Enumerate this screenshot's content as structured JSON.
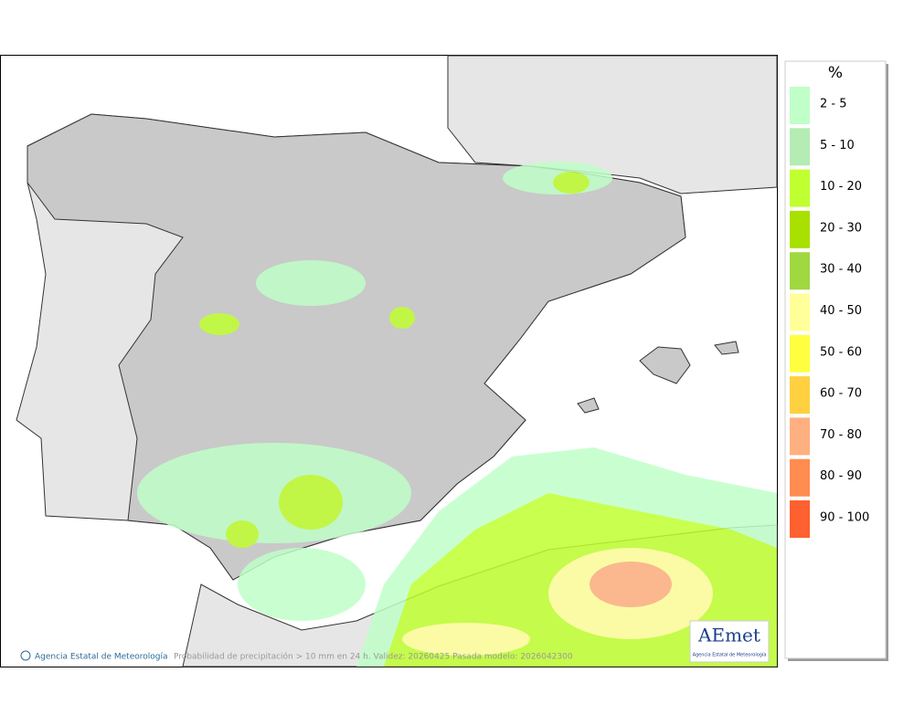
{
  "map": {
    "footer_agency": "Agencia Estatal de Meteorología",
    "footer_caption": "Probabilidad de precipitación > 10 mm en 24 h. Validez: 20260425 Pasada modelo: 2026042300",
    "logo_text": "AEmet",
    "logo_subtitle": "Agencia Estatal de Meteorología"
  },
  "legend": {
    "title": "%",
    "items": [
      {
        "label": "2 - 5",
        "color": "#c0ffc8"
      },
      {
        "label": "5 - 10",
        "color": "#b4ecb4"
      },
      {
        "label": "10 - 20",
        "color": "#c0ff30"
      },
      {
        "label": "20 - 30",
        "color": "#a8e000"
      },
      {
        "label": "30 - 40",
        "color": "#a0d840"
      },
      {
        "label": "40 - 50",
        "color": "#ffff9a"
      },
      {
        "label": "50 - 60",
        "color": "#ffff40"
      },
      {
        "label": "60 - 70",
        "color": "#ffd040"
      },
      {
        "label": "70 - 80",
        "color": "#ffb080"
      },
      {
        "label": "80 - 90",
        "color": "#ff8c50"
      },
      {
        "label": "90 - 100",
        "color": "#ff6030"
      }
    ]
  }
}
